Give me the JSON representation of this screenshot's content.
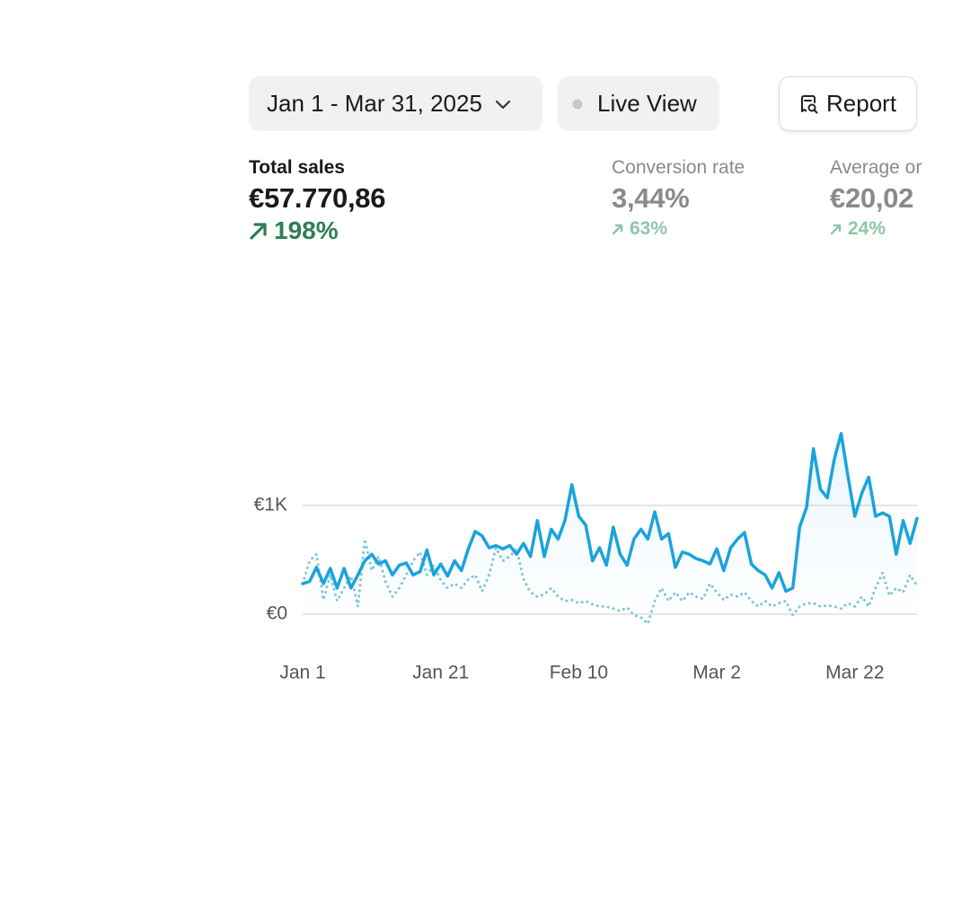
{
  "toolbar": {
    "date_range": "Jan 1 - Mar 31, 2025",
    "live_view": "Live View",
    "report": "Report"
  },
  "metrics": [
    {
      "label": "Total sales",
      "value": "€57.770,86",
      "change": "198%"
    },
    {
      "label": "Conversion rate",
      "value": "3,44%",
      "change": "63%"
    },
    {
      "label": "Average or",
      "value": "€20,02",
      "change": "24%"
    }
  ],
  "chart_data": {
    "type": "line",
    "categories": [
      "Jan 1",
      null,
      null,
      null,
      null,
      null,
      null,
      null,
      null,
      null,
      null,
      null,
      null,
      null,
      null,
      null,
      null,
      null,
      null,
      null,
      "Jan 21",
      null,
      null,
      null,
      null,
      null,
      null,
      null,
      null,
      null,
      null,
      null,
      null,
      null,
      null,
      null,
      null,
      null,
      null,
      null,
      "Feb 10",
      null,
      null,
      null,
      null,
      null,
      null,
      null,
      null,
      null,
      null,
      null,
      null,
      null,
      null,
      null,
      null,
      null,
      null,
      null,
      "Mar 2",
      null,
      null,
      null,
      null,
      null,
      null,
      null,
      null,
      null,
      null,
      null,
      null,
      null,
      null,
      null,
      null,
      null,
      null,
      null,
      "Mar 22",
      null,
      null,
      null,
      null,
      null,
      null,
      null,
      null,
      null
    ],
    "series": [
      {
        "color": "#1aa3dc",
        "style": "solid",
        "values": [
          280,
          300,
          430,
          280,
          420,
          240,
          420,
          240,
          360,
          490,
          550,
          460,
          490,
          360,
          450,
          470,
          360,
          390,
          590,
          360,
          460,
          350,
          490,
          400,
          600,
          760,
          720,
          610,
          630,
          600,
          630,
          550,
          650,
          530,
          860,
          530,
          780,
          690,
          860,
          1190,
          900,
          820,
          490,
          610,
          450,
          800,
          550,
          450,
          690,
          780,
          690,
          940,
          690,
          740,
          430,
          570,
          550,
          510,
          490,
          460,
          600,
          400,
          610,
          690,
          750,
          460,
          400,
          360,
          240,
          380,
          210,
          240,
          800,
          980,
          1520,
          1150,
          1070,
          1420,
          1660,
          1270,
          900,
          1110,
          1260,
          900,
          930,
          900,
          550,
          860,
          650,
          880
        ]
      },
      {
        "color": "#7ec6dc",
        "style": "dotted",
        "values": [
          280,
          490,
          550,
          130,
          360,
          120,
          240,
          350,
          70,
          690,
          400,
          530,
          300,
          160,
          240,
          360,
          490,
          570,
          360,
          450,
          310,
          240,
          280,
          240,
          320,
          360,
          210,
          360,
          610,
          490,
          530,
          600,
          320,
          200,
          160,
          180,
          240,
          160,
          120,
          130,
          100,
          120,
          90,
          70,
          70,
          50,
          30,
          60,
          -10,
          -30,
          -90,
          120,
          240,
          120,
          200,
          120,
          200,
          160,
          140,
          280,
          200,
          130,
          180,
          160,
          200,
          120,
          70,
          120,
          70,
          100,
          120,
          -10,
          70,
          100,
          100,
          70,
          80,
          70,
          50,
          100,
          70,
          160,
          70,
          240,
          380,
          170,
          240,
          200,
          360,
          260
        ]
      }
    ],
    "ylim": [
      -150,
      1700
    ],
    "yticks": [
      {
        "value": 0,
        "label": "€0"
      },
      {
        "value": 1000,
        "label": "€1K"
      }
    ],
    "grid": true
  }
}
